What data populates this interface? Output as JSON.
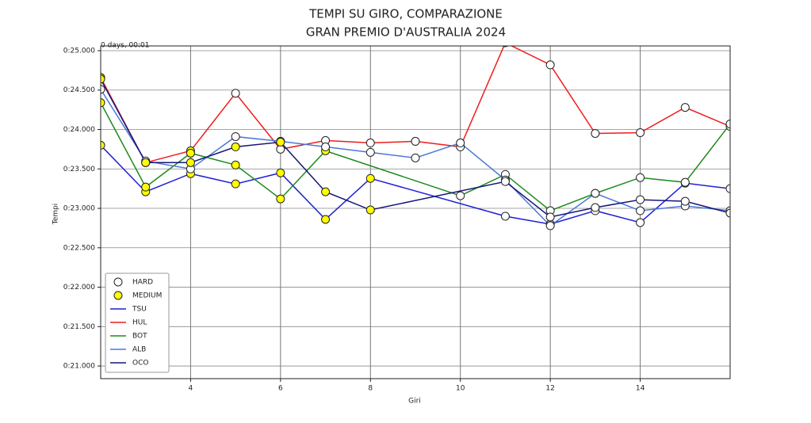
{
  "chart_data": {
    "type": "line",
    "title": "TEMPI SU GIRO, COMPARAZIONE",
    "subtitle": "GRAN PREMIO D'AUSTRALIA 2024",
    "x_label": "Giri",
    "y_label": "Tempi",
    "offset_label": "0 days, 00:01",
    "xlim": [
      2,
      16
    ],
    "ylim": [
      20.84,
      25.06
    ],
    "xticks": [
      4,
      6,
      8,
      10,
      12,
      14
    ],
    "yticks": [
      {
        "value": 21.0,
        "label": "0:21.000"
      },
      {
        "value": 21.5,
        "label": "0:21.500"
      },
      {
        "value": 22.0,
        "label": "0:22.000"
      },
      {
        "value": 22.5,
        "label": "0:22.500"
      },
      {
        "value": 23.0,
        "label": "0:23.000"
      },
      {
        "value": 23.5,
        "label": "0:23.500"
      },
      {
        "value": 24.0,
        "label": "0:24.000"
      },
      {
        "value": 24.5,
        "label": "0:24.500"
      },
      {
        "value": 25.0,
        "label": "0:25.000"
      }
    ],
    "grid": true,
    "legend": "lower left",
    "compounds": [
      {
        "name": "HARD",
        "color": "#ffffff"
      },
      {
        "name": "MEDIUM",
        "color": "#ffff00"
      }
    ],
    "series": [
      {
        "name": "TSU",
        "color": "#1f1fd6",
        "x": [
          2,
          3,
          4,
          5,
          6,
          7,
          8,
          11,
          12,
          13,
          14,
          15,
          16
        ],
        "values": [
          23.8,
          23.21,
          23.44,
          23.31,
          23.45,
          22.86,
          23.38,
          22.9,
          22.8,
          22.97,
          22.82,
          23.32,
          23.25
        ],
        "compound": [
          "MEDIUM",
          "MEDIUM",
          "MEDIUM",
          "MEDIUM",
          "MEDIUM",
          "MEDIUM",
          "MEDIUM",
          "HARD",
          "HARD",
          "HARD",
          "HARD",
          "HARD",
          "HARD"
        ]
      },
      {
        "name": "HUL",
        "color": "#f01c1c",
        "x": [
          2,
          3,
          4,
          5,
          6,
          7,
          8,
          9,
          10,
          11,
          12,
          13,
          14,
          15,
          16
        ],
        "values": [
          24.66,
          23.58,
          23.73,
          24.46,
          23.75,
          23.86,
          23.83,
          23.85,
          23.78,
          25.1,
          24.82,
          23.95,
          23.96,
          24.28,
          24.04
        ],
        "compound": [
          "MEDIUM",
          "MEDIUM",
          "MEDIUM",
          "HARD",
          "HARD",
          "HARD",
          "HARD",
          "HARD",
          "HARD",
          "HARD",
          "HARD",
          "HARD",
          "HARD",
          "HARD",
          "HARD"
        ]
      },
      {
        "name": "BOT",
        "color": "#1e8a1e",
        "x": [
          2,
          3,
          4,
          5,
          6,
          7,
          10,
          11,
          12,
          13,
          14,
          15,
          16
        ],
        "values": [
          24.34,
          23.27,
          23.7,
          23.55,
          23.12,
          23.73,
          23.16,
          23.43,
          22.97,
          23.19,
          23.39,
          23.33,
          24.07
        ],
        "compound": [
          "MEDIUM",
          "MEDIUM",
          "MEDIUM",
          "MEDIUM",
          "MEDIUM",
          "MEDIUM",
          "HARD",
          "HARD",
          "HARD",
          "HARD",
          "HARD",
          "HARD",
          "HARD"
        ]
      },
      {
        "name": "ALB",
        "color": "#4a78d8",
        "x": [
          2,
          3,
          4,
          5,
          6,
          7,
          8,
          9,
          10,
          11,
          12,
          13,
          14,
          15,
          16
        ],
        "values": [
          24.51,
          23.6,
          23.5,
          23.91,
          23.85,
          23.78,
          23.71,
          23.64,
          23.83,
          23.36,
          22.78,
          23.19,
          22.97,
          23.03,
          22.97
        ],
        "compound": [
          "HARD",
          "HARD",
          "HARD",
          "HARD",
          "HARD",
          "HARD",
          "HARD",
          "HARD",
          "HARD",
          "HARD",
          "HARD",
          "HARD",
          "HARD",
          "HARD",
          "HARD"
        ]
      },
      {
        "name": "OCO",
        "color": "#15157a",
        "x": [
          2,
          3,
          4,
          5,
          6,
          7,
          8,
          11,
          12,
          13,
          14,
          15,
          16
        ],
        "values": [
          24.64,
          23.58,
          23.58,
          23.78,
          23.84,
          23.21,
          22.98,
          23.34,
          22.89,
          23.01,
          23.11,
          23.09,
          22.94
        ],
        "compound": [
          "MEDIUM",
          "MEDIUM",
          "MEDIUM",
          "MEDIUM",
          "MEDIUM",
          "MEDIUM",
          "MEDIUM",
          "HARD",
          "HARD",
          "HARD",
          "HARD",
          "HARD",
          "HARD"
        ]
      }
    ]
  }
}
